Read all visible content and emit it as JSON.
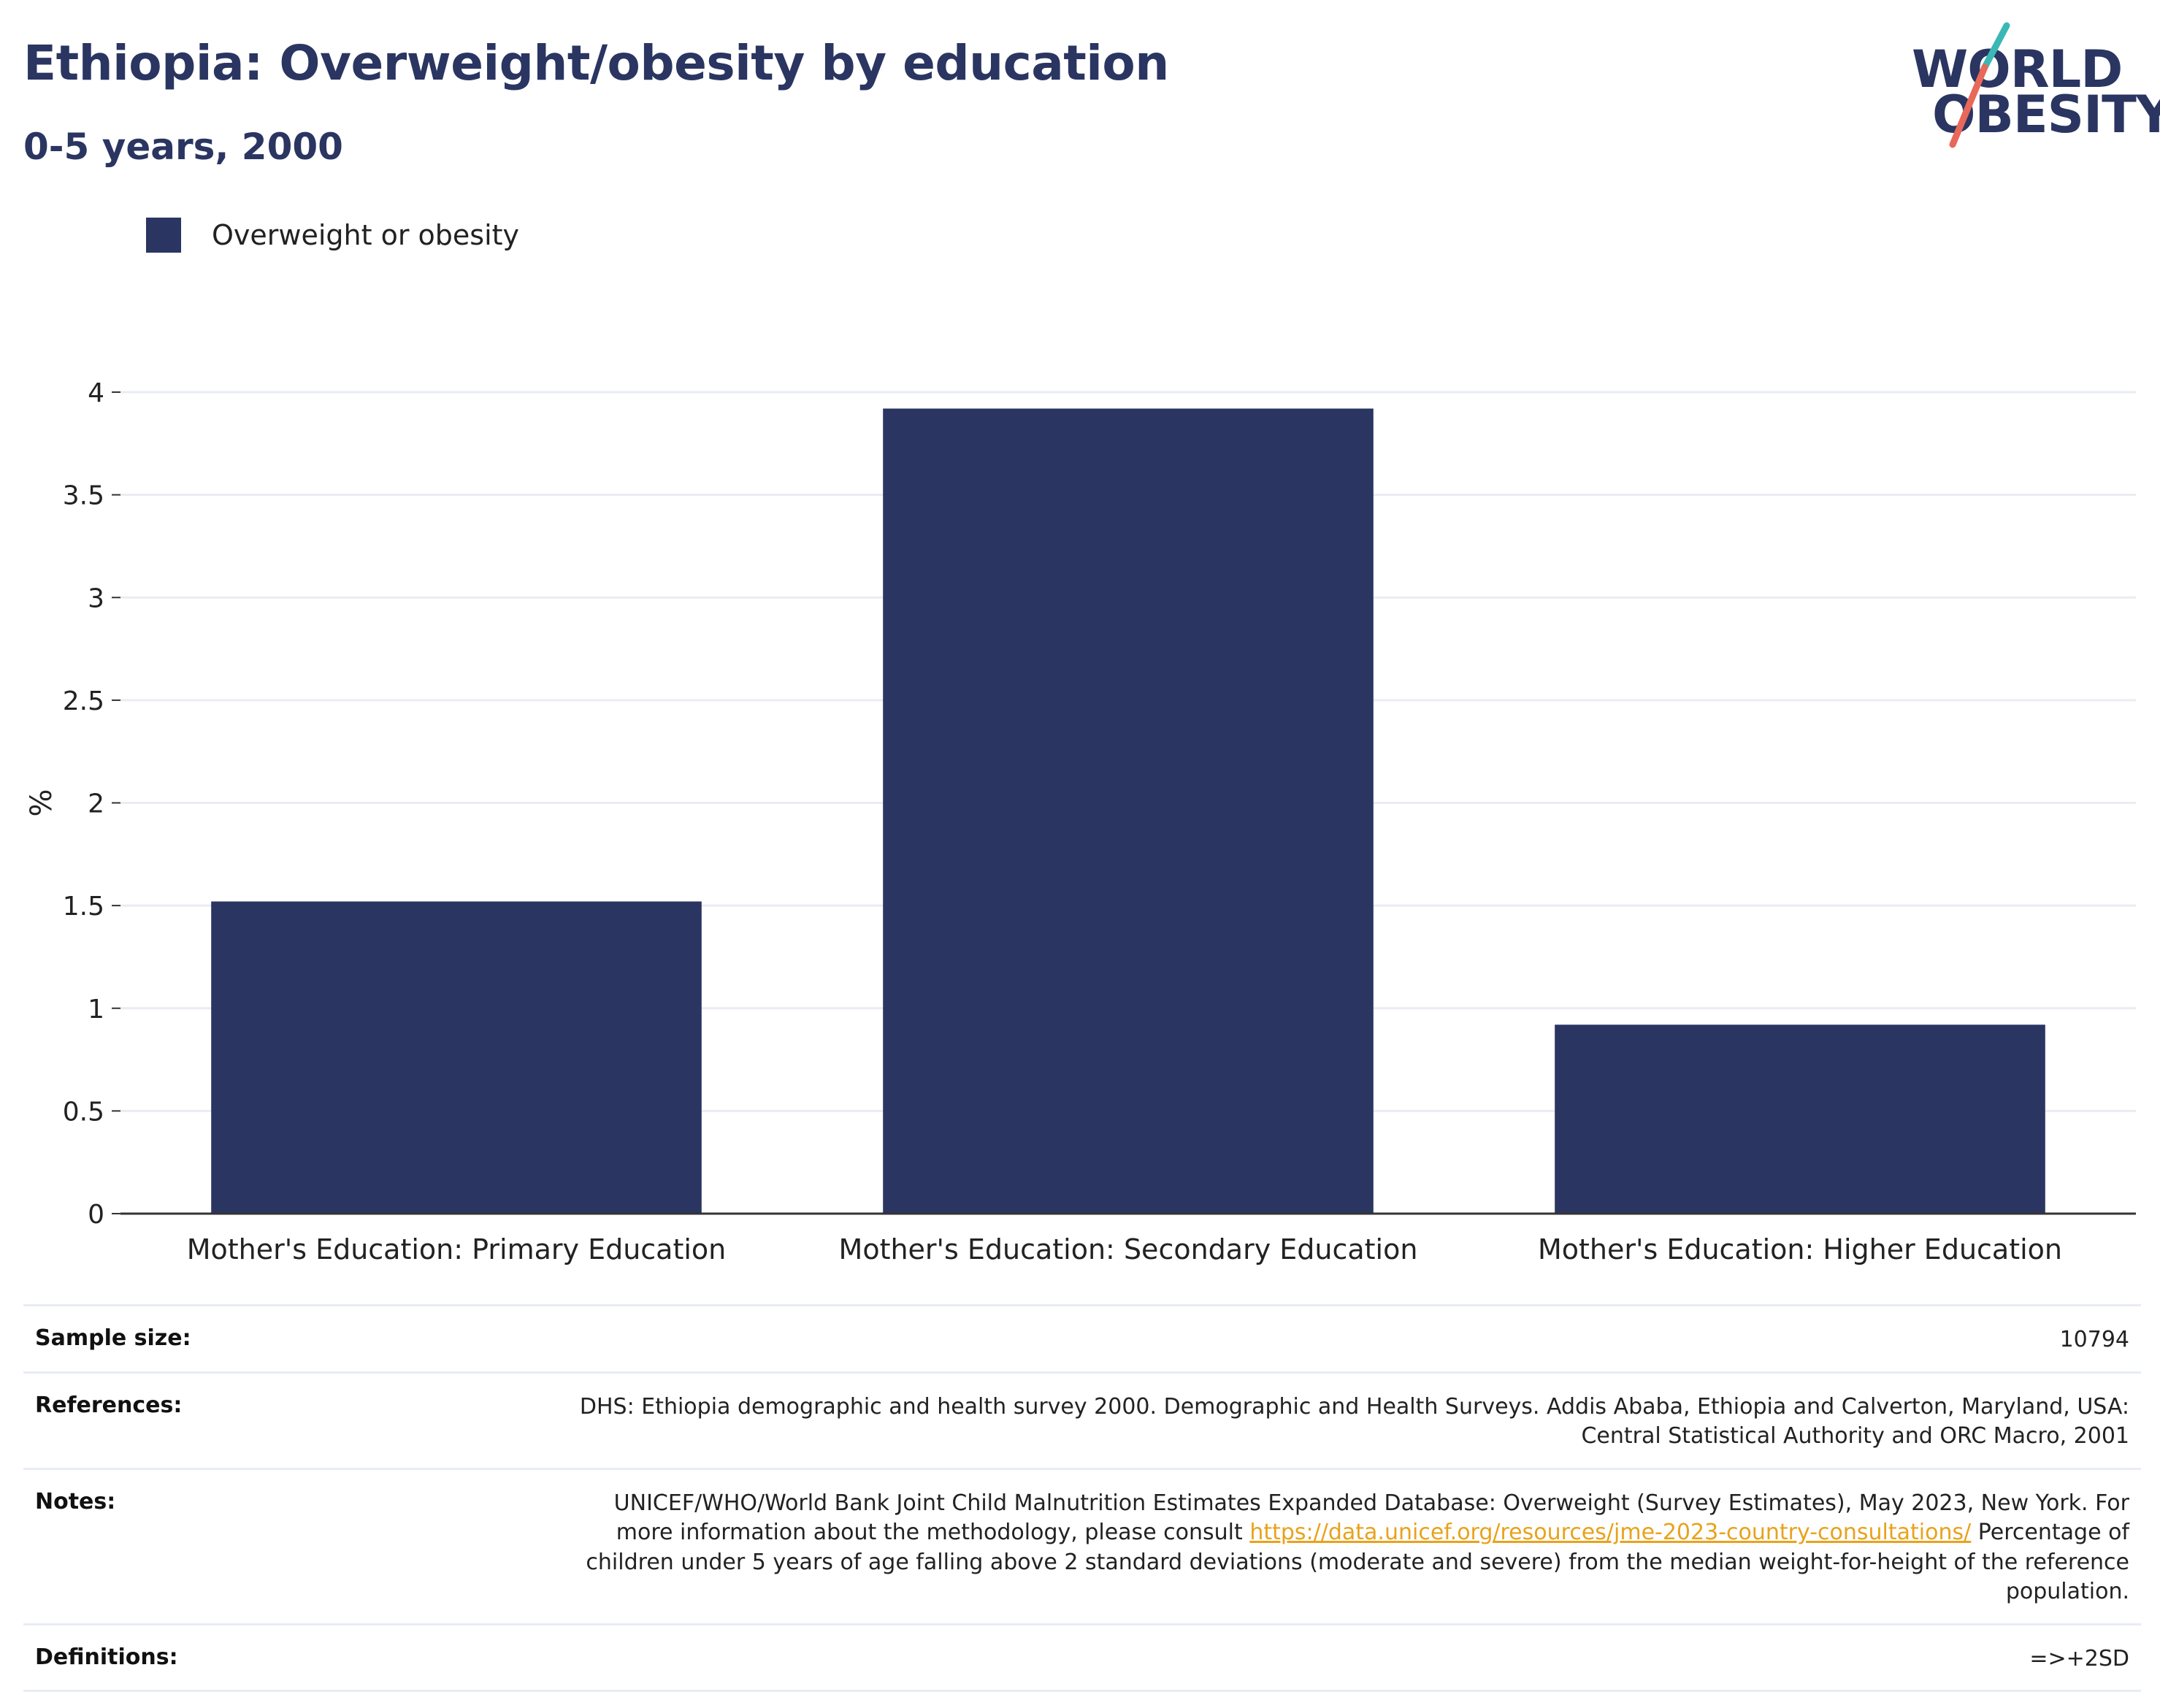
{
  "header": {
    "title": "Ethiopia: Overweight/obesity by education",
    "subtitle": "0-5 years, 2000"
  },
  "logo": {
    "line1": "WORLD",
    "line2": "OBESITY",
    "accent_teal": "#3bb8b6",
    "accent_coral": "#e8685a"
  },
  "chart_data": {
    "type": "bar",
    "categories": [
      "Mother's Education: Primary Education",
      "Mother's Education: Secondary Education",
      "Mother's Education: Higher Education"
    ],
    "series": [
      {
        "name": "Overweight or obesity",
        "values": [
          1.52,
          3.92,
          0.92
        ],
        "color": "#2a3561"
      }
    ],
    "ylabel": "%",
    "xlabel": "",
    "ylim": [
      0,
      4
    ],
    "yticks": [
      0,
      0.5,
      1,
      1.5,
      2,
      2.5,
      3,
      3.5,
      4
    ],
    "ytick_labels": [
      "0",
      "0.5",
      "1",
      "1.5",
      "2",
      "2.5",
      "3",
      "3.5",
      "4"
    ],
    "grid": true,
    "legend_position": "top-left"
  },
  "info": {
    "sample_size_label": "Sample size:",
    "sample_size_value": "10794",
    "references_label": "References:",
    "references_value": "DHS: Ethiopia demographic and health survey 2000. Demographic and Health Surveys. Addis Ababa, Ethiopia and Calverton, Maryland, USA: Central Statistical Authority and ORC Macro, 2001",
    "notes_label": "Notes:",
    "notes_prefix": "UNICEF/WHO/World Bank Joint Child Malnutrition Estimates Expanded Database: Overweight (Survey Estimates), May 2023, New York. For more information about the methodology, please consult ",
    "notes_link": "https://data.unicef.org/resources/jme-2023-country-consultations/",
    "notes_suffix": " Percentage of children under 5 years of age falling above 2 standard deviations (moderate and severe) from the median weight-for-height of the reference population.",
    "definitions_label": "Definitions:",
    "definitions_value": "=>+2SD"
  }
}
